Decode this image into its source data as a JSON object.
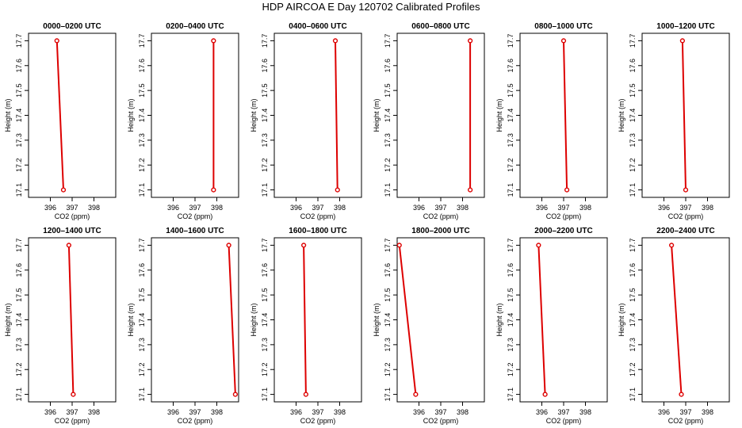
{
  "title": "HDP AIRCOA E  Day 120702  Calibrated Profiles",
  "colors": {
    "series": "#dd0000",
    "axis": "#000000"
  },
  "chart_data": [
    {
      "type": "line",
      "title": "0000–0200 UTC",
      "xlabel": "CO2 (ppm)",
      "ylabel": "Height (m)",
      "xlim": [
        395,
        399
      ],
      "ylim": [
        17.07,
        17.73
      ],
      "xticks": [
        "396",
        "397",
        "398"
      ],
      "yticks": [
        "17.1",
        "17.2",
        "17.3",
        "17.4",
        "17.5",
        "17.6",
        "17.7"
      ],
      "x": [
        396.3,
        396.6
      ],
      "y": [
        17.7,
        17.1
      ]
    },
    {
      "type": "line",
      "title": "0200–0400 UTC",
      "xlabel": "CO2 (ppm)",
      "ylabel": "Height (m)",
      "xlim": [
        395,
        399
      ],
      "ylim": [
        17.07,
        17.73
      ],
      "xticks": [
        "396",
        "397",
        "398"
      ],
      "yticks": [
        "17.1",
        "17.2",
        "17.3",
        "17.4",
        "17.5",
        "17.6",
        "17.7"
      ],
      "x": [
        397.85,
        397.85
      ],
      "y": [
        17.7,
        17.1
      ]
    },
    {
      "type": "line",
      "title": "0400–0600 UTC",
      "xlabel": "CO2 (ppm)",
      "ylabel": "Height (m)",
      "xlim": [
        395,
        399
      ],
      "ylim": [
        17.07,
        17.73
      ],
      "xticks": [
        "396",
        "397",
        "398"
      ],
      "yticks": [
        "17.1",
        "17.2",
        "17.3",
        "17.4",
        "17.5",
        "17.6",
        "17.7"
      ],
      "x": [
        397.8,
        397.9
      ],
      "y": [
        17.7,
        17.1
      ]
    },
    {
      "type": "line",
      "title": "0600–0800 UTC",
      "xlabel": "CO2 (ppm)",
      "ylabel": "Height (m)",
      "xlim": [
        395,
        399
      ],
      "ylim": [
        17.07,
        17.73
      ],
      "xticks": [
        "396",
        "397",
        "398"
      ],
      "yticks": [
        "17.1",
        "17.2",
        "17.3",
        "17.4",
        "17.5",
        "17.6",
        "17.7"
      ],
      "x": [
        398.35,
        398.35
      ],
      "y": [
        17.7,
        17.1
      ]
    },
    {
      "type": "line",
      "title": "0800–1000 UTC",
      "xlabel": "CO2 (ppm)",
      "ylabel": "Height (m)",
      "xlim": [
        395,
        399
      ],
      "ylim": [
        17.07,
        17.73
      ],
      "xticks": [
        "396",
        "397",
        "398"
      ],
      "yticks": [
        "17.1",
        "17.2",
        "17.3",
        "17.4",
        "17.5",
        "17.6",
        "17.7"
      ],
      "x": [
        397.0,
        397.15
      ],
      "y": [
        17.7,
        17.1
      ]
    },
    {
      "type": "line",
      "title": "1000–1200 UTC",
      "xlabel": "CO2 (ppm)",
      "ylabel": "Height (m)",
      "xlim": [
        395,
        399
      ],
      "ylim": [
        17.07,
        17.73
      ],
      "xticks": [
        "396",
        "397",
        "398"
      ],
      "yticks": [
        "17.1",
        "17.2",
        "17.3",
        "17.4",
        "17.5",
        "17.6",
        "17.7"
      ],
      "x": [
        396.85,
        397.0
      ],
      "y": [
        17.7,
        17.1
      ]
    },
    {
      "type": "line",
      "title": "1200–1400 UTC",
      "xlabel": "CO2 (ppm)",
      "ylabel": "Height (m)",
      "xlim": [
        395,
        399
      ],
      "ylim": [
        17.07,
        17.73
      ],
      "xticks": [
        "396",
        "397",
        "398"
      ],
      "yticks": [
        "17.1",
        "17.2",
        "17.3",
        "17.4",
        "17.5",
        "17.6",
        "17.7"
      ],
      "x": [
        396.85,
        397.05
      ],
      "y": [
        17.7,
        17.1
      ]
    },
    {
      "type": "line",
      "title": "1400–1600 UTC",
      "xlabel": "CO2 (ppm)",
      "ylabel": "Height (m)",
      "xlim": [
        395,
        399
      ],
      "ylim": [
        17.07,
        17.73
      ],
      "xticks": [
        "396",
        "397",
        "398"
      ],
      "yticks": [
        "17.1",
        "17.2",
        "17.3",
        "17.4",
        "17.5",
        "17.6",
        "17.7"
      ],
      "x": [
        398.55,
        398.85
      ],
      "y": [
        17.7,
        17.1
      ]
    },
    {
      "type": "line",
      "title": "1600–1800 UTC",
      "xlabel": "CO2 (ppm)",
      "ylabel": "Height (m)",
      "xlim": [
        395,
        399
      ],
      "ylim": [
        17.07,
        17.73
      ],
      "xticks": [
        "396",
        "397",
        "398"
      ],
      "yticks": [
        "17.1",
        "17.2",
        "17.3",
        "17.4",
        "17.5",
        "17.6",
        "17.7"
      ],
      "x": [
        396.35,
        396.45
      ],
      "y": [
        17.7,
        17.1
      ]
    },
    {
      "type": "line",
      "title": "1800–2000 UTC",
      "xlabel": "CO2 (ppm)",
      "ylabel": "Height (m)",
      "xlim": [
        395,
        399
      ],
      "ylim": [
        17.07,
        17.73
      ],
      "xticks": [
        "396",
        "397",
        "398"
      ],
      "yticks": [
        "17.1",
        "17.2",
        "17.3",
        "17.4",
        "17.5",
        "17.6",
        "17.7"
      ],
      "x": [
        395.1,
        395.85
      ],
      "y": [
        17.7,
        17.1
      ]
    },
    {
      "type": "line",
      "title": "2000–2200 UTC",
      "xlabel": "CO2 (ppm)",
      "ylabel": "Height (m)",
      "xlim": [
        395,
        399
      ],
      "ylim": [
        17.07,
        17.73
      ],
      "xticks": [
        "396",
        "397",
        "398"
      ],
      "yticks": [
        "17.1",
        "17.2",
        "17.3",
        "17.4",
        "17.5",
        "17.6",
        "17.7"
      ],
      "x": [
        395.85,
        396.15
      ],
      "y": [
        17.7,
        17.1
      ]
    },
    {
      "type": "line",
      "title": "2200–2400 UTC",
      "xlabel": "CO2 (ppm)",
      "ylabel": "Height (m)",
      "xlim": [
        395,
        399
      ],
      "ylim": [
        17.07,
        17.73
      ],
      "xticks": [
        "396",
        "397",
        "398"
      ],
      "yticks": [
        "17.1",
        "17.2",
        "17.3",
        "17.4",
        "17.5",
        "17.6",
        "17.7"
      ],
      "x": [
        396.35,
        396.8
      ],
      "y": [
        17.7,
        17.1
      ]
    }
  ]
}
